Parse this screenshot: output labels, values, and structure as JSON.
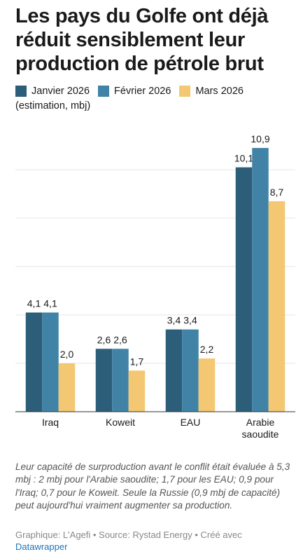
{
  "title": "Les pays du Golfe ont déjà réduit sensiblement leur production de pétrole brut",
  "legend": [
    {
      "label": "Janvier 2026",
      "color": "#2c5e7a"
    },
    {
      "label": "Février 2026",
      "color": "#4183a6"
    },
    {
      "label": "Mars 2026",
      "color": "#f4c872"
    }
  ],
  "subtitle": "(estimation, mbj)",
  "chart_data": {
    "type": "bar",
    "categories": [
      "Iraq",
      "Koweit",
      "EAU",
      "Arabie saoudite"
    ],
    "series": [
      {
        "name": "Janvier 2026",
        "values": [
          4.1,
          2.6,
          3.4,
          10.1
        ],
        "labels": [
          "4,1",
          "2,6",
          "3,4",
          "10,1"
        ],
        "color": "#2c5e7a"
      },
      {
        "name": "Février 2026",
        "values": [
          4.1,
          2.6,
          3.4,
          10.9
        ],
        "labels": [
          "4,1",
          "2,6",
          "3,4",
          "10,9"
        ],
        "color": "#4183a6"
      },
      {
        "name": "Mars 2026",
        "values": [
          2.0,
          1.7,
          2.2,
          8.7
        ],
        "labels": [
          "2,0",
          "1,7",
          "2,2",
          "8,7"
        ],
        "color": "#f4c872"
      }
    ],
    "ylim": [
      0,
      11.5
    ],
    "gridlines": [
      2,
      4,
      6,
      8,
      10
    ],
    "grid": true,
    "xlabel": "",
    "ylabel": ""
  },
  "note": "Leur capacité de surproduction avant le conflit était évaluée à 5,3 mbj : 2 mbj pour l'Arabie saoudite; 1,7 pour les EAU; 0,9 pour l'Iraq; 0,7 pour le Koweit. Seule la Russie (0,9 mbj de capacité) peut aujourd'hui vraiment augmenter sa production.",
  "footer": {
    "credit": "Graphique: L'Agefi • Source: Rystad Energy • Créé avec",
    "link": "Datawrapper"
  }
}
